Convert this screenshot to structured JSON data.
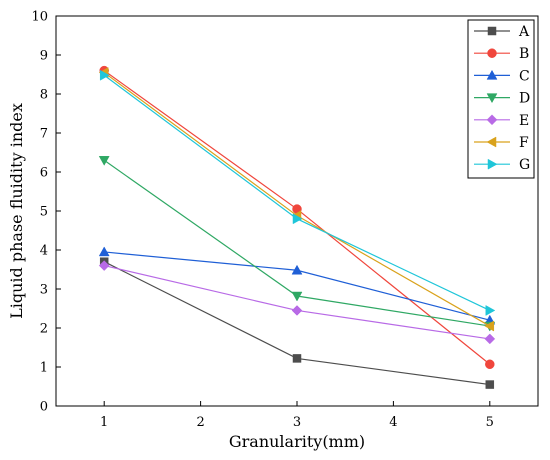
{
  "chart_data": {
    "type": "line",
    "xlabel": "Granularity(mm)",
    "ylabel": "Liquid phase fluidity index",
    "xlim": [
      0.5,
      5.5
    ],
    "ylim": [
      0,
      10
    ],
    "xticks": [
      1,
      2,
      3,
      4,
      5
    ],
    "yticks": [
      0,
      1,
      2,
      3,
      4,
      5,
      6,
      7,
      8,
      9,
      10
    ],
    "x": [
      1,
      3,
      5
    ],
    "legend_position": "top-right",
    "grid": false,
    "series": [
      {
        "name": "A",
        "values": [
          3.7,
          1.22,
          0.55
        ],
        "color": "#4d4d4d",
        "marker": "square"
      },
      {
        "name": "B",
        "values": [
          8.6,
          5.05,
          1.07
        ],
        "color": "#f0463c",
        "marker": "circle"
      },
      {
        "name": "C",
        "values": [
          3.95,
          3.48,
          2.2
        ],
        "color": "#1f5fd6",
        "marker": "triangle-up"
      },
      {
        "name": "D",
        "values": [
          6.3,
          2.82,
          2.05
        ],
        "color": "#2fa864",
        "marker": "triangle-down"
      },
      {
        "name": "E",
        "values": [
          3.6,
          2.45,
          1.72
        ],
        "color": "#b86ae6",
        "marker": "diamond"
      },
      {
        "name": "F",
        "values": [
          8.55,
          4.88,
          2.05
        ],
        "color": "#d9a21c",
        "marker": "triangle-left"
      },
      {
        "name": "G",
        "values": [
          8.48,
          4.8,
          2.45
        ],
        "color": "#1fc6d9",
        "marker": "triangle-right"
      }
    ]
  }
}
